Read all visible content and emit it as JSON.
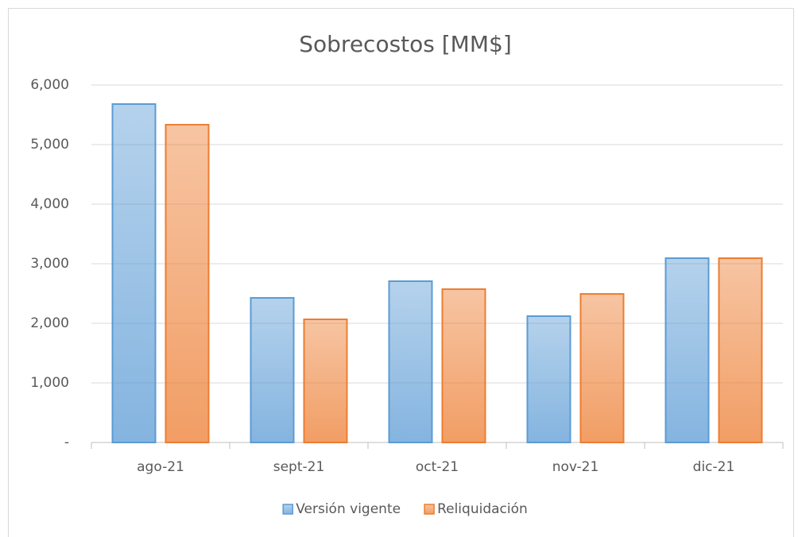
{
  "chart_data": {
    "type": "bar",
    "title": "Sobrecostos  [MM$]",
    "categories": [
      "ago-21",
      "sept-21",
      "oct-21",
      "nov-21",
      "dic-21"
    ],
    "series": [
      {
        "name": "Versión vigente",
        "color": "#5b9bd5",
        "values": [
          5680,
          2427,
          2707,
          2120,
          3093
        ]
      },
      {
        "name": "Reliquidación",
        "color": "#ed7d31",
        "values": [
          5333,
          2067,
          2573,
          2493,
          3093
        ]
      }
    ],
    "ylim": [
      0,
      6000
    ],
    "yticks": [
      {
        "value": 0,
        "label": "-"
      },
      {
        "value": 1000,
        "label": "1,000"
      },
      {
        "value": 2000,
        "label": "2,000"
      },
      {
        "value": 3000,
        "label": "3,000"
      },
      {
        "value": 4000,
        "label": "4,000"
      },
      {
        "value": 5000,
        "label": "5,000"
      },
      {
        "value": 6000,
        "label": "6,000"
      }
    ],
    "grid": true,
    "legend": "bottom"
  }
}
